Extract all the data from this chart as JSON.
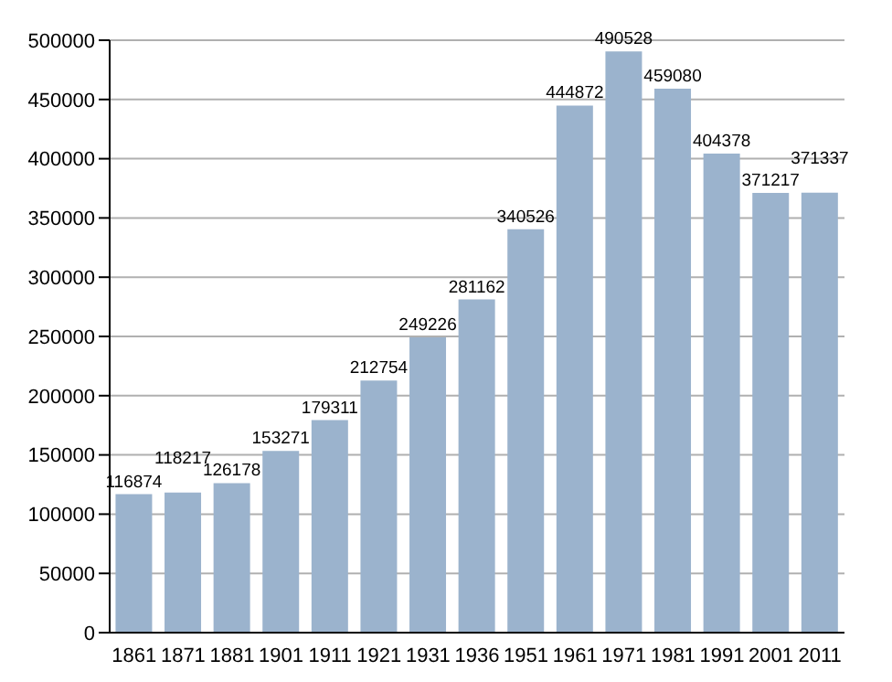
{
  "chart_data": {
    "type": "bar",
    "categories": [
      "1861",
      "1871",
      "1881",
      "1901",
      "1911",
      "1921",
      "1931",
      "1936",
      "1951",
      "1961",
      "1971",
      "1981",
      "1991",
      "2001",
      "2011"
    ],
    "values": [
      116874,
      118217,
      126178,
      153271,
      179311,
      212754,
      249226,
      281162,
      340526,
      444872,
      490528,
      459080,
      404378,
      371217,
      371337
    ],
    "color": "#9bb3cd",
    "ylim": [
      0,
      500000
    ],
    "yticks": [
      0,
      50000,
      100000,
      150000,
      200000,
      250000,
      300000,
      350000,
      400000,
      450000,
      500000
    ],
    "grid": "y",
    "data_labels": true
  }
}
